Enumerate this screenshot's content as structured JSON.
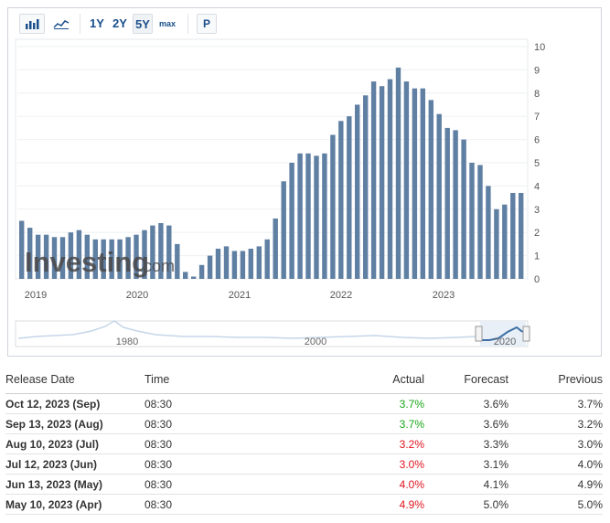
{
  "toolbar": {
    "bar_icon": "bar-chart-icon",
    "line_icon": "line-chart-icon",
    "ranges": [
      "1Y",
      "2Y",
      "5Y",
      "max"
    ],
    "active_range": "5Y",
    "p_label": "P"
  },
  "watermark": "Investing.com",
  "chart_data": {
    "type": "bar",
    "ylim": [
      0,
      10
    ],
    "y_ticks": [
      "0",
      "1",
      "2",
      "3",
      "4",
      "5",
      "6",
      "7",
      "8",
      "9",
      "10"
    ],
    "x_tick_labels": [
      "2019",
      "2020",
      "2021",
      "2022",
      "2023"
    ],
    "bar_color": "#5f7fa3",
    "values": [
      2.5,
      2.2,
      1.9,
      1.9,
      1.8,
      1.8,
      2.0,
      2.1,
      1.9,
      1.7,
      1.7,
      1.7,
      1.7,
      1.8,
      1.9,
      2.1,
      2.3,
      2.4,
      2.3,
      1.5,
      0.3,
      0.1,
      0.6,
      1.0,
      1.3,
      1.4,
      1.2,
      1.2,
      1.3,
      1.4,
      1.7,
      2.6,
      4.2,
      5.0,
      5.4,
      5.4,
      5.3,
      5.4,
      6.2,
      6.8,
      7.0,
      7.5,
      7.9,
      8.5,
      8.3,
      8.6,
      9.1,
      8.5,
      8.2,
      8.2,
      7.7,
      7.1,
      6.5,
      6.4,
      6.0,
      5.0,
      4.9,
      4.0,
      3.0,
      3.2,
      3.7,
      3.7
    ]
  },
  "navigator": {
    "labels": [
      "1980",
      "2000",
      "2020"
    ]
  },
  "table": {
    "headers": [
      "Release Date",
      "Time",
      "Actual",
      "Forecast",
      "Previous"
    ],
    "rows": [
      {
        "date": "Oct 12, 2023 (Sep)",
        "time": "08:30",
        "actual": "3.7%",
        "forecast": "3.6%",
        "previous": "3.7%",
        "trend": "up"
      },
      {
        "date": "Sep 13, 2023 (Aug)",
        "time": "08:30",
        "actual": "3.7%",
        "forecast": "3.6%",
        "previous": "3.2%",
        "trend": "up"
      },
      {
        "date": "Aug 10, 2023 (Jul)",
        "time": "08:30",
        "actual": "3.2%",
        "forecast": "3.3%",
        "previous": "3.0%",
        "trend": "down"
      },
      {
        "date": "Jul 12, 2023 (Jun)",
        "time": "08:30",
        "actual": "3.0%",
        "forecast": "3.1%",
        "previous": "4.0%",
        "trend": "down"
      },
      {
        "date": "Jun 13, 2023 (May)",
        "time": "08:30",
        "actual": "4.0%",
        "forecast": "4.1%",
        "previous": "4.9%",
        "trend": "down"
      },
      {
        "date": "May 10, 2023 (Apr)",
        "time": "08:30",
        "actual": "4.9%",
        "forecast": "5.0%",
        "previous": "5.0%",
        "trend": "down"
      }
    ]
  }
}
